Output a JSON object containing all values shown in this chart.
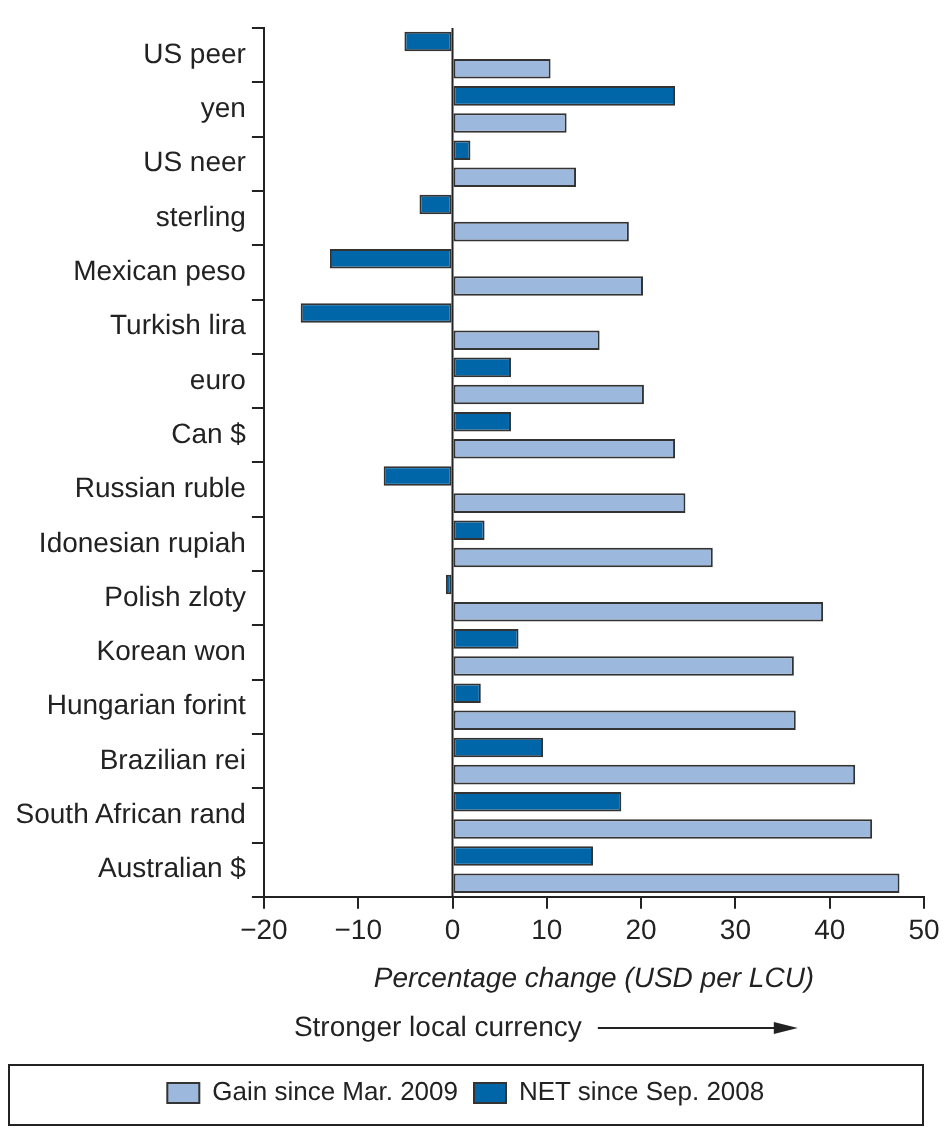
{
  "chart_data": {
    "type": "bar",
    "orientation": "horizontal",
    "xlabel": "Percentage change (USD per LCU)",
    "annotations": [
      "Stronger local currency"
    ],
    "categories": [
      "US peer",
      "yen",
      "US neer",
      "sterling",
      "Mexican peso",
      "Turkish lira",
      "euro",
      "Can $",
      "Russian ruble",
      "Idonesian rupiah",
      "Polish zloty",
      "Korean won",
      "Hungarian forint",
      "Brazilian rei",
      "South African rand",
      "Australian $"
    ],
    "series": [
      {
        "name": "Gain since Mar. 2009",
        "color": "#9db8dd",
        "values": [
          10.4,
          12.1,
          13.1,
          18.7,
          20.2,
          15.6,
          20.3,
          23.6,
          24.7,
          27.6,
          39.3,
          36.2,
          36.4,
          42.7,
          44.5,
          47.4
        ]
      },
      {
        "name": "NET since Sep. 2008",
        "color": "#0066a8",
        "values": [
          -5.1,
          23.6,
          1.9,
          -3.5,
          -13,
          -16.1,
          6.2,
          6.2,
          -7.3,
          3.4,
          -0.7,
          7,
          3,
          9.6,
          17.9,
          14.9
        ]
      }
    ],
    "xlim": [
      -20,
      50
    ],
    "xticks": [
      -20,
      -10,
      0,
      10,
      20,
      30,
      40,
      50
    ],
    "grid": false,
    "legend": "bottom",
    "ref_lines": [
      {
        "axis": "x",
        "value": 0,
        "color": "#222222"
      }
    ]
  }
}
